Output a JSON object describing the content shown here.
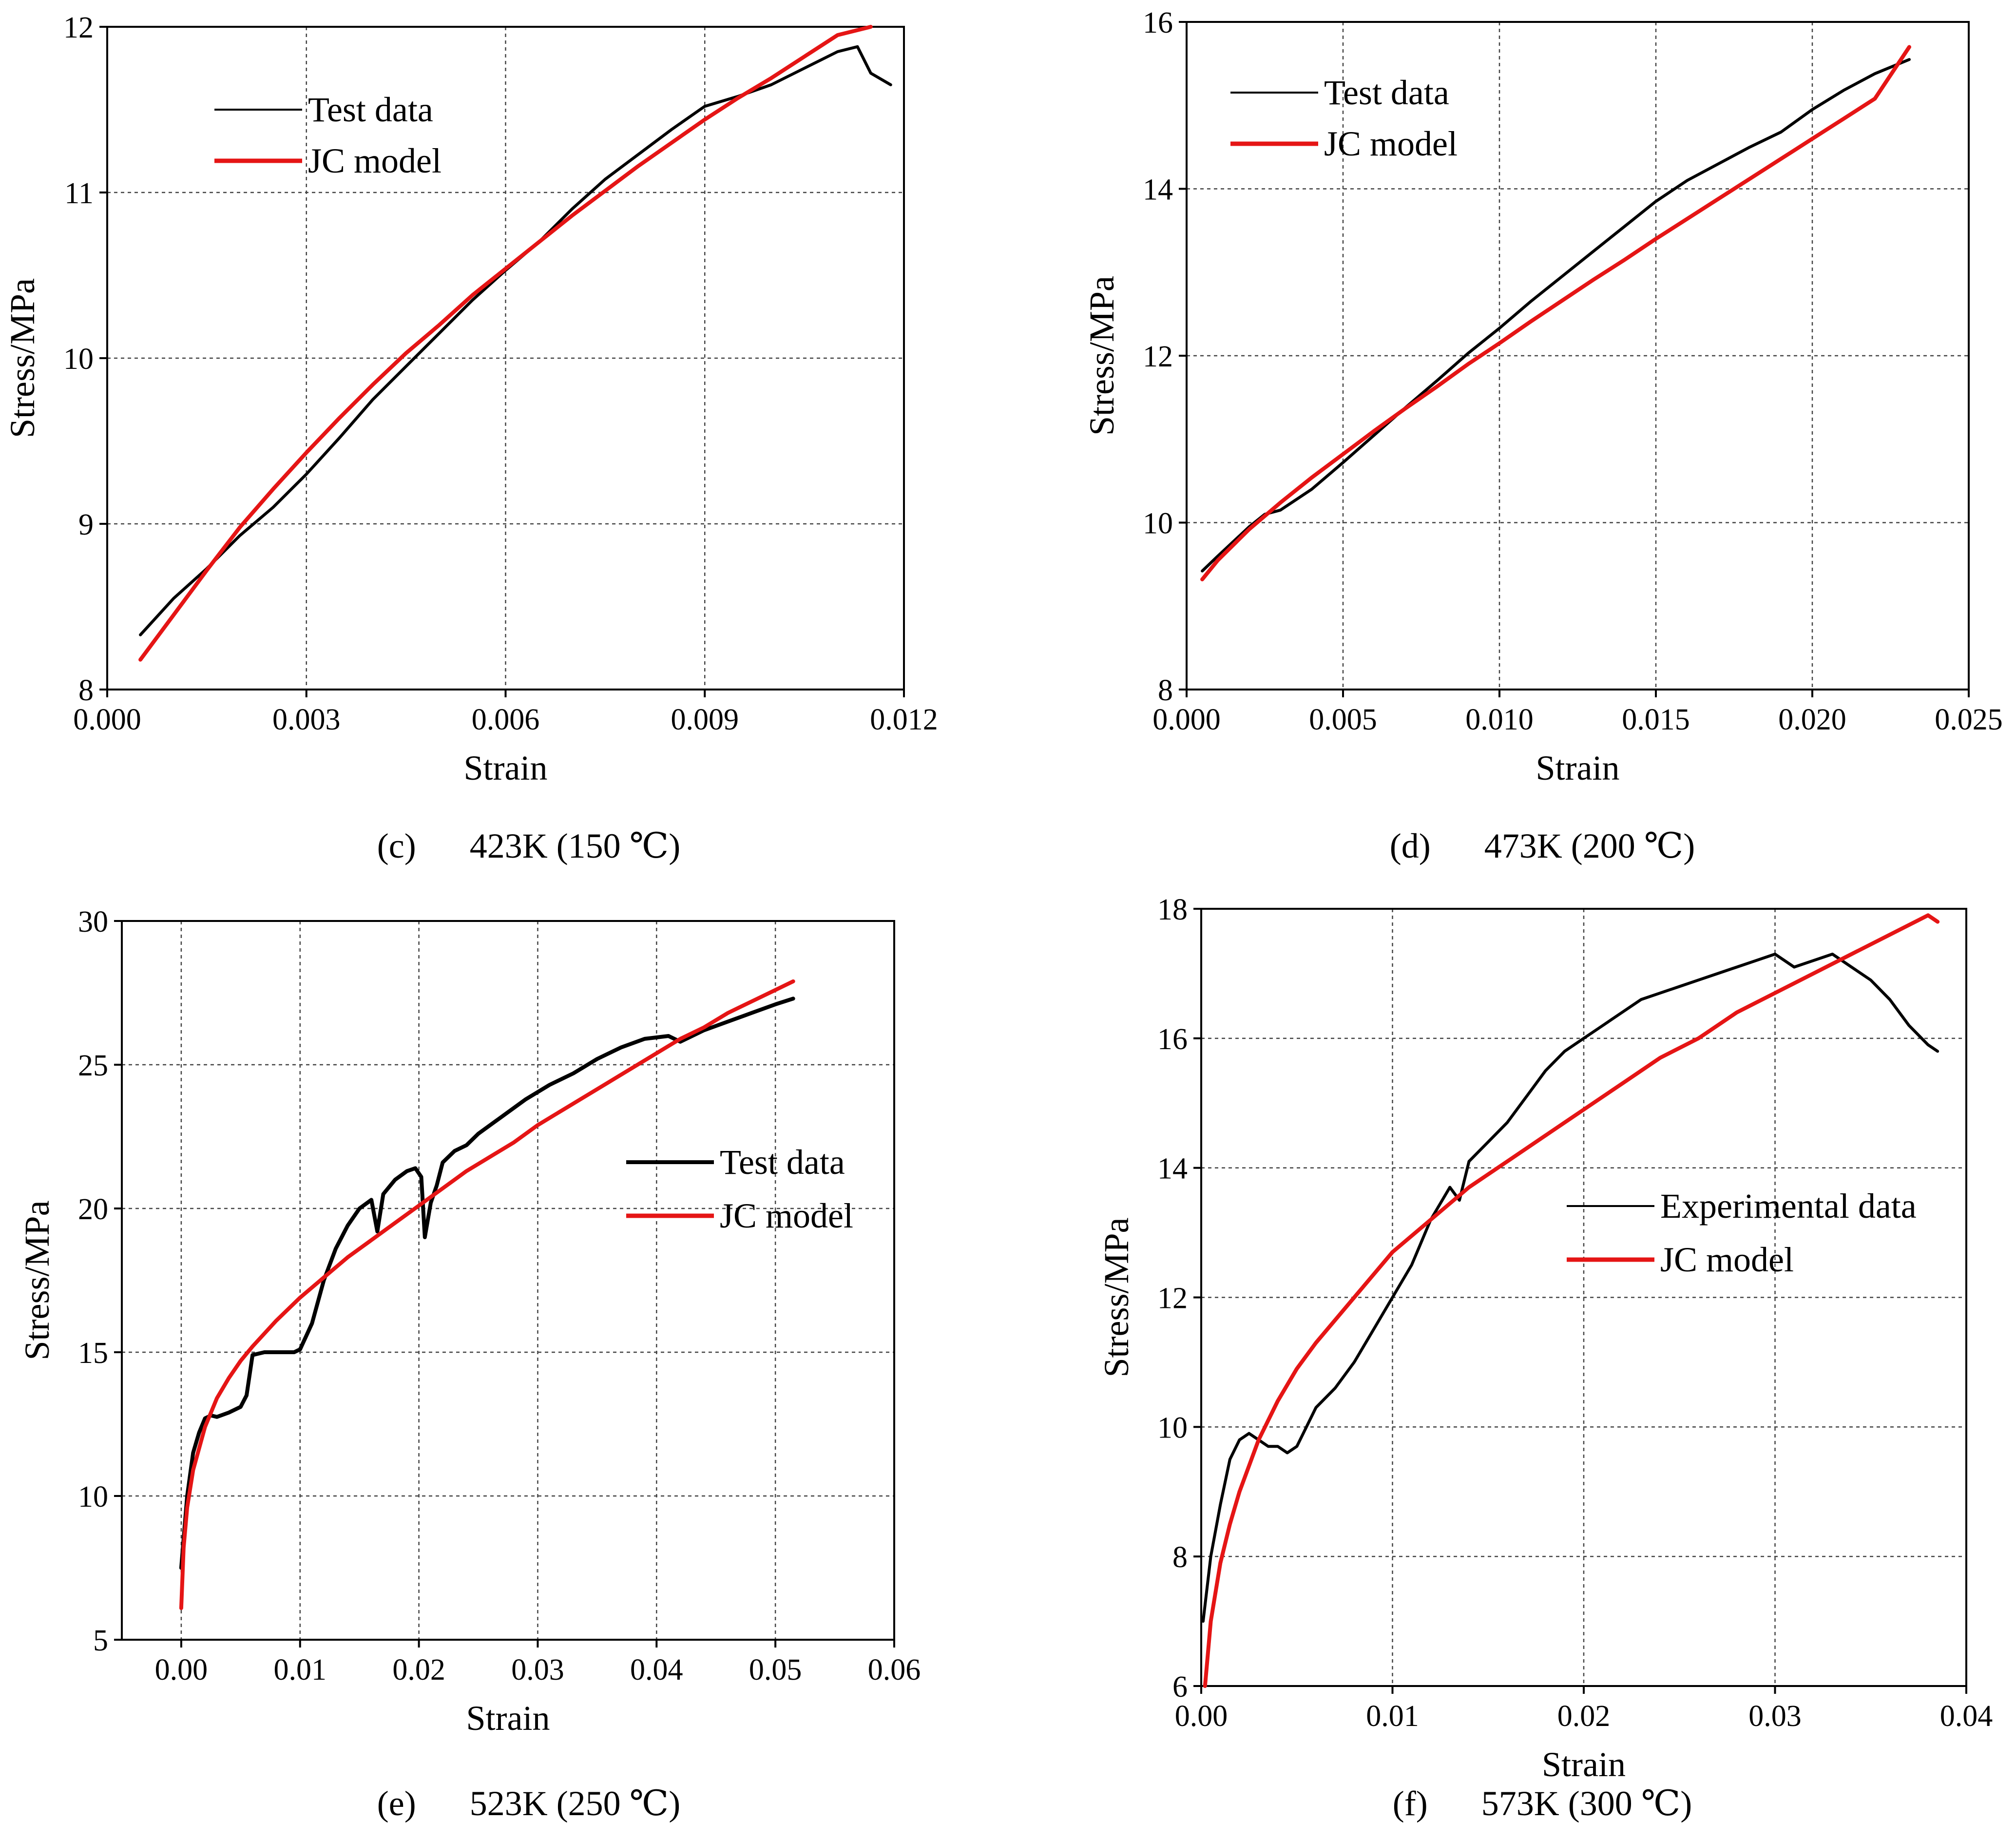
{
  "colors": {
    "test": "#000000",
    "model": "#e51515",
    "grid": "#444444"
  },
  "chart_data": [
    {
      "id": "c",
      "type": "line",
      "caption": {
        "letter": "(c)",
        "text": "423K (150 ℃)"
      },
      "xlabel": "Strain",
      "ylabel": "Stress/MPa",
      "xlim": [
        0.0,
        0.012
      ],
      "ylim": [
        8,
        12
      ],
      "xticks": [
        0.0,
        0.003,
        0.006,
        0.009,
        0.012
      ],
      "xtick_labels": [
        "0.000",
        "0.003",
        "0.006",
        "0.009",
        "0.012"
      ],
      "yticks": [
        8,
        9,
        10,
        11,
        12
      ],
      "ytick_labels": [
        "8",
        "9",
        "10",
        "11",
        "12"
      ],
      "legend": {
        "position": "top-left",
        "entries": [
          "Test data",
          "JC model"
        ]
      },
      "series": [
        {
          "name": "Test data",
          "style": "test",
          "x": [
            0.0005,
            0.001,
            0.0015,
            0.002,
            0.0025,
            0.003,
            0.0035,
            0.004,
            0.0045,
            0.005,
            0.0055,
            0.006,
            0.0065,
            0.007,
            0.0075,
            0.008,
            0.0085,
            0.009,
            0.0095,
            0.01,
            0.0105,
            0.011,
            0.0113,
            0.0115,
            0.0118
          ],
          "y": [
            8.33,
            8.55,
            8.73,
            8.93,
            9.1,
            9.3,
            9.52,
            9.75,
            9.95,
            10.15,
            10.35,
            10.53,
            10.7,
            10.9,
            11.08,
            11.23,
            11.38,
            11.52,
            11.58,
            11.65,
            11.75,
            11.85,
            11.88,
            11.72,
            11.65
          ]
        },
        {
          "name": "JC model",
          "style": "jc",
          "x": [
            0.0005,
            0.001,
            0.0015,
            0.002,
            0.0025,
            0.003,
            0.0035,
            0.004,
            0.0045,
            0.005,
            0.0055,
            0.006,
            0.0065,
            0.007,
            0.0075,
            0.008,
            0.0085,
            0.009,
            0.0095,
            0.01,
            0.0105,
            0.011,
            0.0115
          ],
          "y": [
            8.18,
            8.45,
            8.72,
            8.98,
            9.21,
            9.43,
            9.64,
            9.84,
            10.03,
            10.2,
            10.38,
            10.54,
            10.7,
            10.86,
            11.01,
            11.16,
            11.3,
            11.44,
            11.57,
            11.69,
            11.82,
            11.95,
            12.0
          ]
        }
      ]
    },
    {
      "id": "d",
      "type": "line",
      "caption": {
        "letter": "(d)",
        "text": "473K (200 ℃)"
      },
      "xlabel": "Strain",
      "ylabel": "Stress/MPa",
      "xlim": [
        0.0,
        0.025
      ],
      "ylim": [
        8,
        16
      ],
      "xticks": [
        0.0,
        0.005,
        0.01,
        0.015,
        0.02,
        0.025
      ],
      "xtick_labels": [
        "0.000",
        "0.005",
        "0.010",
        "0.015",
        "0.020",
        "0.025"
      ],
      "yticks": [
        8,
        10,
        12,
        14,
        16
      ],
      "ytick_labels": [
        "8",
        "10",
        "12",
        "14",
        "16"
      ],
      "legend": {
        "position": "top-left",
        "entries": [
          "Test data",
          "JC model"
        ]
      },
      "series": [
        {
          "name": "Test data",
          "style": "test",
          "x": [
            0.0005,
            0.001,
            0.002,
            0.0025,
            0.003,
            0.004,
            0.005,
            0.006,
            0.007,
            0.008,
            0.009,
            0.01,
            0.011,
            0.012,
            0.013,
            0.014,
            0.015,
            0.016,
            0.017,
            0.018,
            0.019,
            0.02,
            0.021,
            0.022,
            0.0231
          ],
          "y": [
            9.42,
            9.6,
            9.95,
            10.1,
            10.15,
            10.4,
            10.72,
            11.05,
            11.38,
            11.7,
            12.03,
            12.33,
            12.65,
            12.95,
            13.25,
            13.55,
            13.85,
            14.1,
            14.3,
            14.5,
            14.68,
            14.95,
            15.18,
            15.38,
            15.55
          ]
        },
        {
          "name": "JC model",
          "style": "jc",
          "x": [
            0.0005,
            0.001,
            0.002,
            0.003,
            0.004,
            0.005,
            0.006,
            0.007,
            0.008,
            0.009,
            0.01,
            0.011,
            0.012,
            0.013,
            0.014,
            0.015,
            0.016,
            0.017,
            0.018,
            0.019,
            0.02,
            0.021,
            0.022,
            0.0231
          ],
          "y": [
            9.32,
            9.55,
            9.92,
            10.24,
            10.54,
            10.82,
            11.1,
            11.37,
            11.63,
            11.9,
            12.15,
            12.41,
            12.66,
            12.91,
            13.15,
            13.4,
            13.64,
            13.88,
            14.12,
            14.36,
            14.6,
            14.84,
            15.08,
            15.7
          ]
        }
      ]
    },
    {
      "id": "e",
      "type": "line",
      "caption": {
        "letter": "(e)",
        "text": "523K (250 ℃)"
      },
      "xlabel": "Strain",
      "ylabel": "Stress/MPa",
      "xlim": [
        -0.005,
        0.06
      ],
      "ylim": [
        5,
        30
      ],
      "xticks": [
        0.0,
        0.01,
        0.02,
        0.03,
        0.04,
        0.05,
        0.06
      ],
      "xtick_labels": [
        "0.00",
        "0.01",
        "0.02",
        "0.03",
        "0.04",
        "0.05",
        "0.06"
      ],
      "yticks": [
        5,
        10,
        15,
        20,
        25,
        30
      ],
      "ytick_labels": [
        "5",
        "10",
        "15",
        "20",
        "25",
        "30"
      ],
      "legend": {
        "position": "center-right",
        "entries": [
          "Test data",
          "JC model"
        ]
      },
      "series": [
        {
          "name": "Test data",
          "style": "test",
          "x": [
            0.0,
            0.0005,
            0.001,
            0.0015,
            0.002,
            0.0025,
            0.003,
            0.004,
            0.005,
            0.0055,
            0.006,
            0.0065,
            0.007,
            0.008,
            0.009,
            0.0095,
            0.01,
            0.011,
            0.012,
            0.013,
            0.014,
            0.015,
            0.016,
            0.0165,
            0.017,
            0.018,
            0.019,
            0.0197,
            0.0202,
            0.0205,
            0.021,
            0.0215,
            0.022,
            0.023,
            0.024,
            0.025,
            0.027,
            0.029,
            0.031,
            0.033,
            0.035,
            0.037,
            0.039,
            0.041,
            0.042,
            0.044,
            0.046,
            0.048,
            0.05,
            0.0515
          ],
          "y": [
            7.5,
            10.0,
            11.5,
            12.2,
            12.7,
            12.8,
            12.75,
            12.9,
            13.1,
            13.5,
            14.9,
            14.95,
            15.0,
            15.0,
            15.0,
            15.0,
            15.1,
            16.0,
            17.5,
            18.6,
            19.4,
            20.0,
            20.3,
            19.2,
            20.5,
            21.0,
            21.3,
            21.4,
            21.1,
            19.0,
            20.2,
            20.8,
            21.6,
            22.0,
            22.2,
            22.6,
            23.2,
            23.8,
            24.3,
            24.7,
            25.2,
            25.6,
            25.9,
            26.0,
            25.8,
            26.2,
            26.5,
            26.8,
            27.1,
            27.3
          ]
        },
        {
          "name": "JC model",
          "style": "jc",
          "x": [
            0.0,
            0.0002,
            0.0005,
            0.001,
            0.002,
            0.003,
            0.004,
            0.005,
            0.006,
            0.008,
            0.01,
            0.012,
            0.014,
            0.016,
            0.018,
            0.02,
            0.022,
            0.024,
            0.026,
            0.028,
            0.03,
            0.032,
            0.034,
            0.036,
            0.038,
            0.04,
            0.042,
            0.044,
            0.046,
            0.048,
            0.05,
            0.0515
          ],
          "y": [
            6.1,
            8.2,
            9.6,
            10.9,
            12.4,
            13.4,
            14.1,
            14.7,
            15.2,
            16.1,
            16.9,
            17.6,
            18.3,
            18.9,
            19.5,
            20.1,
            20.7,
            21.3,
            21.8,
            22.3,
            22.9,
            23.4,
            23.9,
            24.4,
            24.9,
            25.4,
            25.9,
            26.3,
            26.8,
            27.2,
            27.6,
            27.9
          ]
        }
      ]
    },
    {
      "id": "f",
      "type": "line",
      "caption": {
        "letter": "(f)",
        "text": "573K (300 ℃)"
      },
      "xlabel": "Strain",
      "ylabel": "Stress/MPa",
      "xlim": [
        0.0,
        0.04
      ],
      "ylim": [
        6,
        18
      ],
      "xticks": [
        0.0,
        0.01,
        0.02,
        0.03,
        0.04
      ],
      "xtick_labels": [
        "0.00",
        "0.01",
        "0.02",
        "0.03",
        "0.04"
      ],
      "yticks": [
        6,
        8,
        10,
        12,
        14,
        16,
        18
      ],
      "ytick_labels": [
        "6",
        "8",
        "10",
        "12",
        "14",
        "16",
        "18"
      ],
      "legend": {
        "position": "center-right",
        "entries": [
          "Experimental data",
          "JC model"
        ]
      },
      "series": [
        {
          "name": "Experimental data",
          "style": "test",
          "x": [
            0.0001,
            0.0005,
            0.001,
            0.0015,
            0.002,
            0.0025,
            0.003,
            0.0035,
            0.004,
            0.0045,
            0.005,
            0.006,
            0.007,
            0.008,
            0.009,
            0.01,
            0.011,
            0.012,
            0.013,
            0.0135,
            0.014,
            0.015,
            0.016,
            0.017,
            0.018,
            0.019,
            0.02,
            0.021,
            0.022,
            0.023,
            0.024,
            0.025,
            0.026,
            0.027,
            0.028,
            0.029,
            0.03,
            0.031,
            0.032,
            0.033,
            0.034,
            0.035,
            0.036,
            0.037,
            0.038,
            0.0385
          ],
          "y": [
            7.0,
            8.0,
            8.8,
            9.5,
            9.8,
            9.9,
            9.8,
            9.7,
            9.7,
            9.6,
            9.7,
            10.3,
            10.6,
            11.0,
            11.5,
            12.0,
            12.5,
            13.2,
            13.7,
            13.5,
            14.1,
            14.4,
            14.7,
            15.1,
            15.5,
            15.8,
            16.0,
            16.2,
            16.4,
            16.6,
            16.7,
            16.8,
            16.9,
            17.0,
            17.1,
            17.2,
            17.3,
            17.1,
            17.2,
            17.3,
            17.1,
            16.9,
            16.6,
            16.2,
            15.9,
            15.8
          ]
        },
        {
          "name": "JC model",
          "style": "jc",
          "x": [
            0.0002,
            0.0005,
            0.001,
            0.0015,
            0.002,
            0.003,
            0.004,
            0.005,
            0.006,
            0.008,
            0.01,
            0.012,
            0.014,
            0.016,
            0.018,
            0.02,
            0.022,
            0.024,
            0.026,
            0.028,
            0.03,
            0.032,
            0.034,
            0.036,
            0.038,
            0.0385
          ],
          "y": [
            6.0,
            7.0,
            7.9,
            8.5,
            9.0,
            9.8,
            10.4,
            10.9,
            11.3,
            12.0,
            12.7,
            13.2,
            13.7,
            14.1,
            14.5,
            14.9,
            15.3,
            15.7,
            16.0,
            16.4,
            16.7,
            17.0,
            17.3,
            17.6,
            17.9,
            17.8
          ]
        }
      ]
    }
  ]
}
